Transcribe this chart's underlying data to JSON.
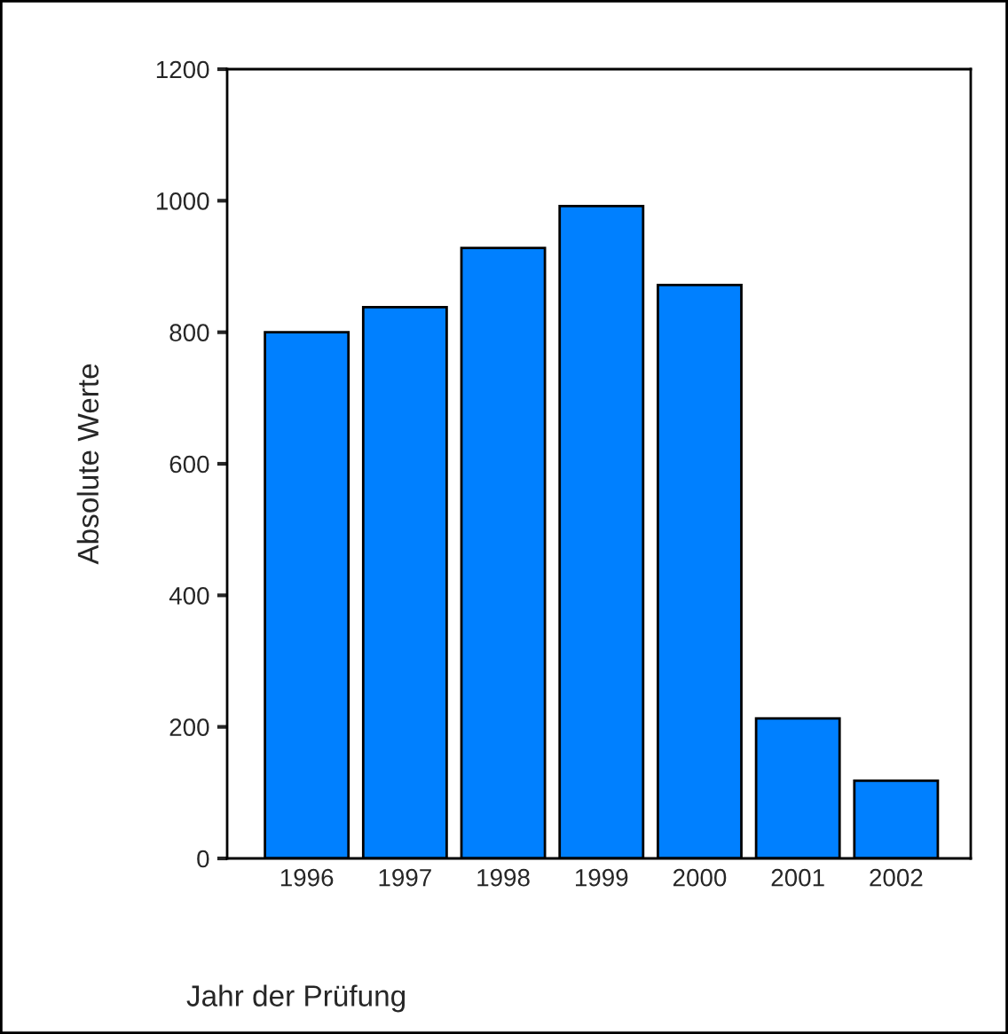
{
  "chart_data": {
    "type": "bar",
    "xlabel": "Jahr der Prüfung",
    "ylabel": "Absolute Werte",
    "categories": [
      "1996",
      "1997",
      "1998",
      "1999",
      "2000",
      "2001",
      "2002"
    ],
    "values": [
      800,
      838,
      928,
      992,
      872,
      213,
      118
    ],
    "color": "#0080ff",
    "ylim": [
      0,
      1200
    ],
    "yticks": [
      0,
      200,
      400,
      600,
      800,
      1000,
      1200
    ],
    "grid": false,
    "legend": false
  }
}
